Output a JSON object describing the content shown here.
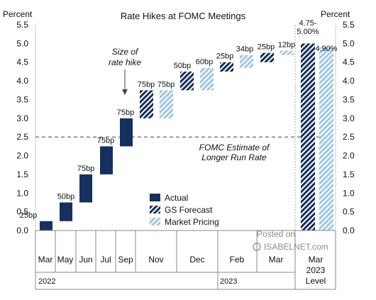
{
  "chart_data": {
    "type": "bar",
    "title": "Rate Hikes at FOMC Meetings",
    "y_label_left": "Percent",
    "y_label_right": "Percent",
    "ylim": [
      0,
      5.5
    ],
    "yticks": [
      "0.0",
      "0.5",
      "1.0",
      "1.5",
      "2.0",
      "2.5",
      "3.0",
      "3.5",
      "4.0",
      "4.5",
      "5.0",
      "5.5"
    ],
    "grid": false,
    "legend_placement": "center-bottom",
    "legend": [
      {
        "name": "Actual",
        "style": "solid"
      },
      {
        "name": "GS Forecast",
        "style": "hatch-dark"
      },
      {
        "name": "Market Pricing",
        "style": "hatch-light"
      }
    ],
    "colors": {
      "actual": "#15305e",
      "forecast": "#15305e",
      "market": "#9fc6e3",
      "dashed_line": "#555555"
    },
    "reference_line": {
      "value": 2.5,
      "label": [
        "FOMC Estimate of",
        "Longer Run Rate"
      ]
    },
    "size_annotation": [
      "Size of",
      "rate hike"
    ],
    "steps": [
      {
        "kind": "actual",
        "start": 0.0,
        "end": 0.25,
        "label": "25bp"
      },
      {
        "kind": "actual",
        "start": 0.25,
        "end": 0.75,
        "label": "50bp"
      },
      {
        "kind": "actual",
        "start": 0.75,
        "end": 1.5,
        "label": "75bp"
      },
      {
        "kind": "actual",
        "start": 1.5,
        "end": 2.25,
        "label": "75bp"
      },
      {
        "kind": "actual",
        "start": 2.25,
        "end": 3.0,
        "label": "75bp"
      },
      {
        "kind": "forecast",
        "start": 3.0,
        "end": 3.75,
        "label": "75bp"
      },
      {
        "kind": "market",
        "start": 3.0,
        "end": 3.75,
        "label": "75bp"
      },
      {
        "kind": "forecast",
        "start": 3.75,
        "end": 4.25,
        "label": "50bp"
      },
      {
        "kind": "market",
        "start": 3.75,
        "end": 4.35,
        "label": "60bp"
      },
      {
        "kind": "forecast",
        "start": 4.25,
        "end": 4.5,
        "label": "25bp"
      },
      {
        "kind": "market",
        "start": 4.35,
        "end": 4.69,
        "label": "34bp"
      },
      {
        "kind": "forecast",
        "start": 4.5,
        "end": 4.75,
        "label": "25bp"
      },
      {
        "kind": "market",
        "start": 4.69,
        "end": 4.81,
        "label": "12bp"
      }
    ],
    "level": [
      {
        "kind": "forecast",
        "value": 5.0,
        "label": [
          "4.75-",
          "5.00%"
        ]
      },
      {
        "kind": "market",
        "value": 4.9,
        "label": [
          "4.90%"
        ]
      }
    ],
    "months": [
      "Mar",
      "May",
      "Jun",
      "Jul",
      "Sep",
      "Nov",
      "Dec",
      "Feb",
      "Mar",
      "Mar"
    ],
    "years": [
      "2022",
      "2023"
    ],
    "level_label": [
      "2023",
      "Level"
    ]
  },
  "watermark": {
    "line1": "Posted on",
    "line2": "ISABELNET.com"
  }
}
